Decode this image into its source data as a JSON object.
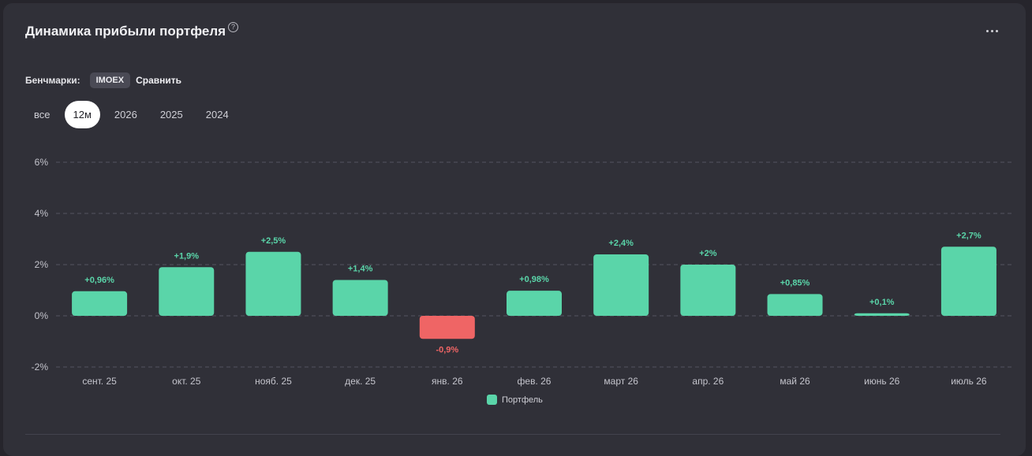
{
  "header": {
    "title": "Динамика прибыли портфеля",
    "help_icon": "?",
    "more_icon": "more-dots-icon"
  },
  "benchmarks": {
    "label": "Бенчмарки:",
    "chip": "IMOEX",
    "compare": "Сравнить"
  },
  "periods": [
    {
      "label": "все",
      "active": false
    },
    {
      "label": "12м",
      "active": true
    },
    {
      "label": "2026",
      "active": false
    },
    {
      "label": "2025",
      "active": false
    },
    {
      "label": "2024",
      "active": false
    }
  ],
  "colors": {
    "positive": "#5ad5a9",
    "negative": "#ef6565",
    "grid": "#55555f"
  },
  "chart_data": {
    "type": "bar",
    "categories": [
      "сент. 25",
      "окт. 25",
      "нояб. 25",
      "дек. 25",
      "янв. 26",
      "фев. 26",
      "март 26",
      "апр. 26",
      "май 26",
      "июнь 26",
      "июль 26"
    ],
    "series": [
      {
        "name": "Портфель",
        "values": [
          0.96,
          1.9,
          2.5,
          1.4,
          -0.9,
          0.98,
          2.4,
          2.0,
          0.85,
          0.1,
          2.7
        ],
        "labels": [
          "+0,96%",
          "+1,9%",
          "+2,5%",
          "+1,4%",
          "-0,9%",
          "+0,98%",
          "+2,4%",
          "+2%",
          "+0,85%",
          "+0,1%",
          "+2,7%"
        ]
      }
    ],
    "ylim": [
      -2,
      6
    ],
    "yticks": [
      -2,
      0,
      2,
      4,
      6
    ],
    "ytick_labels": [
      "-2%",
      "0%",
      "2%",
      "4%",
      "6%"
    ],
    "grid": true,
    "legend": "bottom"
  }
}
